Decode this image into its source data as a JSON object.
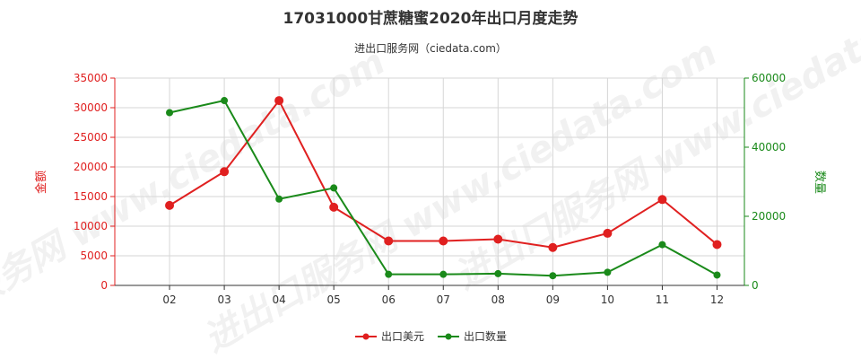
{
  "chart_data": {
    "type": "line",
    "title": "17031000甘蔗糖蜜2020年出口月度走势",
    "subtitle": "进出口服务网（ciedata.com）",
    "categories": [
      "02",
      "03",
      "04",
      "05",
      "06",
      "07",
      "08",
      "09",
      "10",
      "11",
      "12"
    ],
    "y_left": {
      "label": "金额",
      "ylim": [
        0,
        35000
      ],
      "ticks": [
        0,
        5000,
        10000,
        15000,
        20000,
        25000,
        30000,
        35000
      ],
      "color": "#e02020"
    },
    "y_right": {
      "label": "数量",
      "ylim": [
        0,
        60000
      ],
      "ticks": [
        0,
        20000,
        40000,
        60000
      ],
      "color": "#1a8a1a"
    },
    "series": [
      {
        "name": "出口美元",
        "axis": "left",
        "color": "#e02020",
        "values": [
          13500,
          19200,
          31200,
          13200,
          7500,
          7500,
          7800,
          6400,
          8800,
          14500,
          6900
        ]
      },
      {
        "name": "出口数量",
        "axis": "right",
        "color": "#1a8a1a",
        "values": [
          50000,
          53500,
          25000,
          28200,
          3200,
          3200,
          3400,
          2800,
          3800,
          11800,
          3000
        ]
      }
    ],
    "grid": true,
    "legend_position": "bottom-center",
    "watermark": "进出口服务网 www.ciedata.com"
  }
}
